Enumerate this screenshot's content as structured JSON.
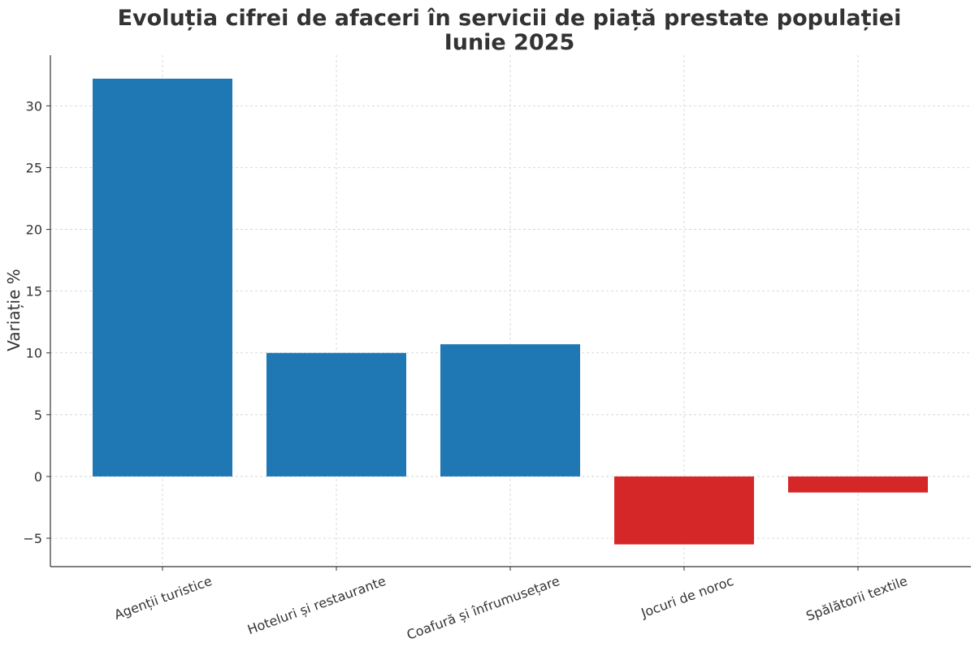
{
  "chart_data": {
    "type": "bar",
    "title_line1": "Evoluția cifrei de afaceri în servicii de piață prestate populației",
    "title_line2": "Iunie 2025",
    "xlabel": "",
    "ylabel": "Variație %",
    "categories": [
      "Agenții turistice",
      "Hoteluri și restaurante",
      "Coafură și înfrumusețare",
      "Jocuri de noroc",
      "Spălătorii textile"
    ],
    "values": [
      32.2,
      10.0,
      10.7,
      -5.5,
      -1.3
    ],
    "ylim": [
      -7.3,
      34.1
    ],
    "yticks": [
      -5,
      0,
      5,
      10,
      15,
      20,
      25,
      30
    ],
    "ytick_labels": [
      "−5",
      "0",
      "5",
      "10",
      "15",
      "20",
      "25",
      "30"
    ],
    "grid": true,
    "colors": {
      "positive": "#1f77b4",
      "negative": "#d62728",
      "text": "#333333",
      "grid": "#cfcfcf"
    }
  }
}
